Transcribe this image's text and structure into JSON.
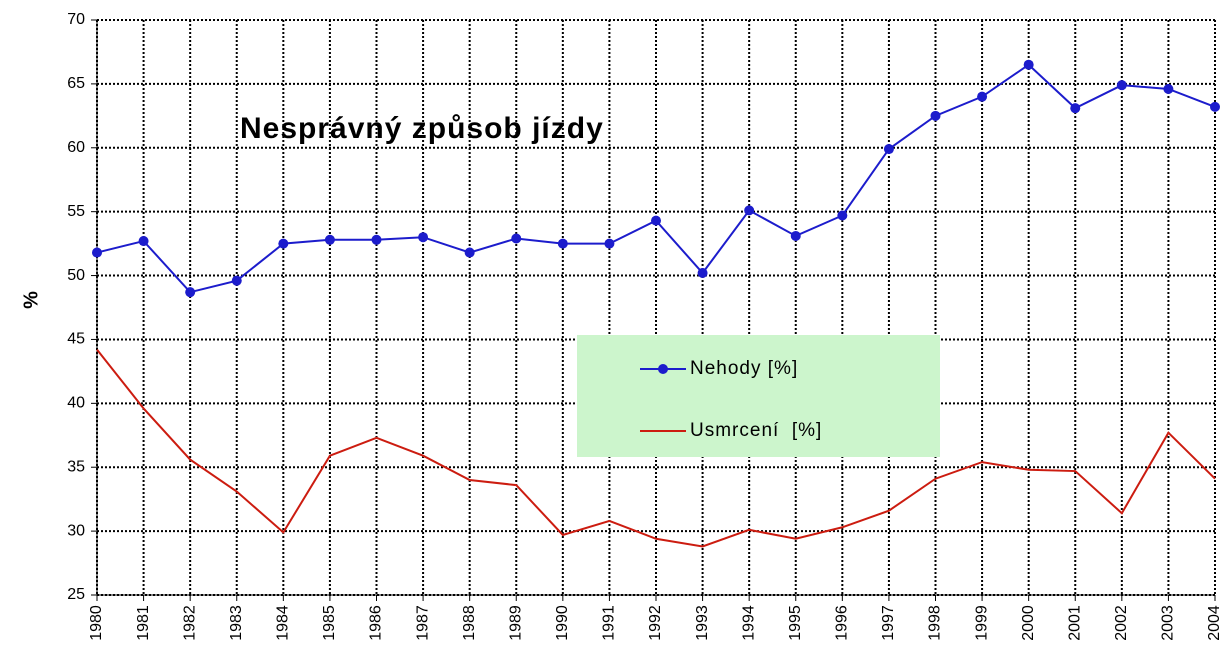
{
  "chart_data": {
    "type": "line",
    "annotation": "Nesprávný způsob jízdy",
    "y_label": "%",
    "x": [
      1980,
      1981,
      1982,
      1983,
      1984,
      1985,
      1986,
      1987,
      1988,
      1989,
      1990,
      1991,
      1992,
      1993,
      1994,
      1995,
      1996,
      1997,
      1998,
      1999,
      2000,
      2001,
      2002,
      2003,
      2004
    ],
    "xlim": [
      1980,
      2004
    ],
    "xticks": [
      1980,
      1981,
      1982,
      1983,
      1984,
      1985,
      1986,
      1987,
      1988,
      1989,
      1990,
      1991,
      1992,
      1993,
      1994,
      1995,
      1996,
      1997,
      1998,
      1999,
      2000,
      2001,
      2002,
      2003,
      2004
    ],
    "ylim": [
      25,
      70
    ],
    "yticks": [
      25,
      30,
      35,
      40,
      45,
      50,
      55,
      60,
      65,
      70
    ],
    "grid": true,
    "series": [
      {
        "name": "Nehody [%]",
        "color": "#1c1ccc",
        "markers": true,
        "values": [
          51.8,
          52.7,
          48.7,
          49.6,
          52.5,
          52.8,
          52.8,
          53.0,
          51.8,
          52.9,
          52.5,
          52.5,
          54.3,
          50.2,
          55.1,
          53.1,
          54.7,
          59.9,
          62.5,
          64.0,
          66.5,
          63.1,
          64.9,
          64.6,
          63.2
        ]
      },
      {
        "name": "Usmrcení  [%]",
        "color": "#cc1c10",
        "markers": false,
        "values": [
          44.2,
          39.6,
          35.6,
          33.1,
          29.9,
          35.9,
          37.3,
          35.9,
          34.0,
          33.6,
          29.7,
          30.8,
          29.4,
          28.8,
          30.1,
          29.4,
          30.3,
          31.6,
          34.1,
          35.4,
          34.8,
          34.7,
          31.4,
          37.7,
          34.1
        ]
      }
    ]
  }
}
